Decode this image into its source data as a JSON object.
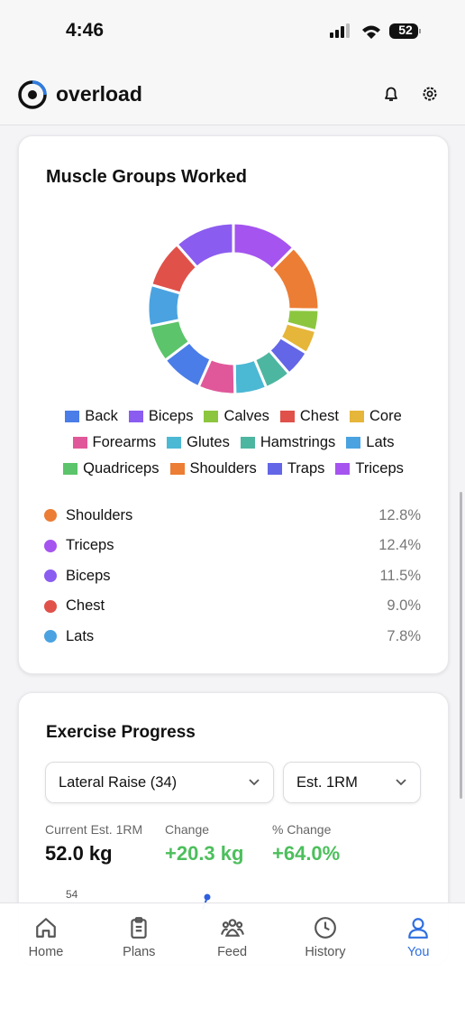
{
  "status_bar": {
    "time": "4:46",
    "battery": "52"
  },
  "header": {
    "app_name": "overload"
  },
  "muscle_card": {
    "title": "Muscle Groups Worked",
    "top_groups": [
      {
        "name": "Shoulders",
        "percent": "12.8%"
      },
      {
        "name": "Triceps",
        "percent": "12.4%"
      },
      {
        "name": "Biceps",
        "percent": "11.5%"
      },
      {
        "name": "Chest",
        "percent": "9.0%"
      },
      {
        "name": "Lats",
        "percent": "7.8%"
      }
    ]
  },
  "chart_data": {
    "type": "donut",
    "categories": [
      "Triceps",
      "Shoulders",
      "Calves",
      "Core",
      "Traps",
      "Hamstrings",
      "Glutes",
      "Forearms",
      "Back",
      "Quadriceps",
      "Lats",
      "Chest",
      "Biceps"
    ],
    "values": [
      12.4,
      12.8,
      4,
      4.5,
      5,
      5,
      6,
      7,
      8,
      7,
      7.8,
      9,
      11.5
    ],
    "colors": [
      "#a554ef",
      "#ec7d34",
      "#8cc63f",
      "#e6b63a",
      "#6366e6",
      "#4db6a0",
      "#4bb8d4",
      "#e0589a",
      "#4a7de8",
      "#5cc46a",
      "#4aa3e0",
      "#e0514a",
      "#8b5cf0"
    ]
  },
  "progress_card": {
    "title": "Exercise Progress",
    "exercise_select": "Lateral Raise (34)",
    "metric_select": "Est. 1RM",
    "stats": [
      {
        "label": "Current Est. 1RM",
        "value": "52.0 kg"
      },
      {
        "label": "Change",
        "value": "+20.3 kg"
      },
      {
        "label": "% Change",
        "value": "+64.0%"
      }
    ],
    "chart_tick": "54"
  },
  "nav": {
    "items": [
      "Home",
      "Plans",
      "Feed",
      "History",
      "You"
    ],
    "active": "You"
  }
}
